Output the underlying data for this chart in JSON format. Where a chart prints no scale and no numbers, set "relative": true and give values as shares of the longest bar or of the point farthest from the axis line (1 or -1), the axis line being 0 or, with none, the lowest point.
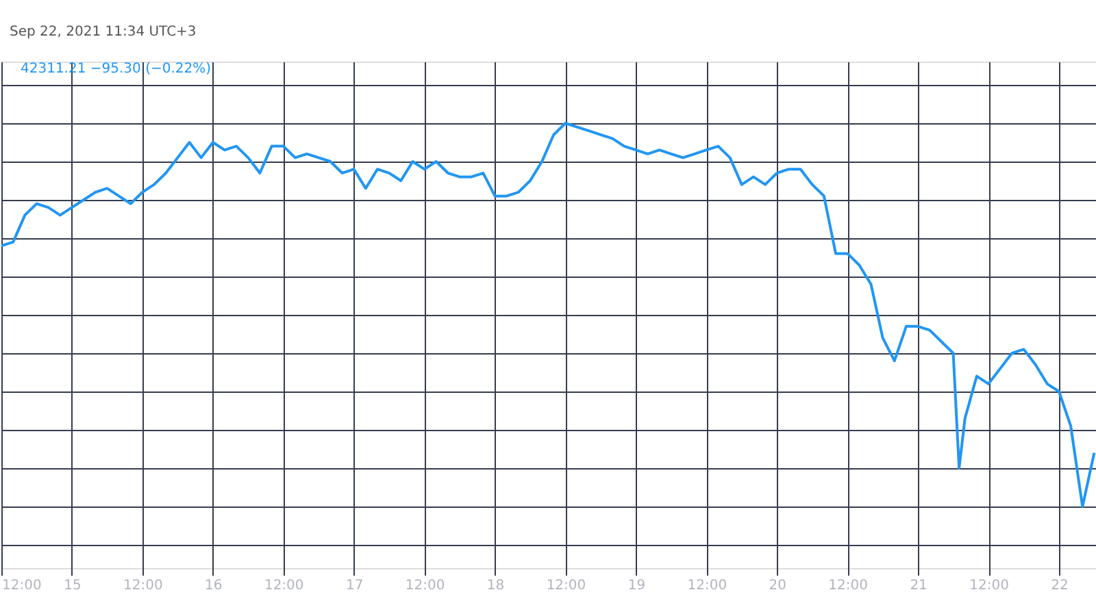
{
  "chart_data": {
    "type": "line",
    "relative": true,
    "grid": true,
    "marker": "none",
    "line_style": "solid",
    "annotations": [
      "Sep 22, 2021 11:34 UTC+3",
      "42311.21  −95.30 (−0.22%)"
    ],
    "xlim": [
      "2021-09-14T12:00",
      "2021-09-22T06:18"
    ],
    "xticks": [
      {
        "value": "2021-09-14T12:00",
        "label": "12:00"
      },
      {
        "value": "2021-09-15T00:00",
        "label": "15"
      },
      {
        "value": "2021-09-15T12:00",
        "label": "12:00"
      },
      {
        "value": "2021-09-16T00:00",
        "label": "16"
      },
      {
        "value": "2021-09-16T12:00",
        "label": "12:00"
      },
      {
        "value": "2021-09-17T00:00",
        "label": "17"
      },
      {
        "value": "2021-09-17T12:00",
        "label": "12:00"
      },
      {
        "value": "2021-09-18T00:00",
        "label": "18"
      },
      {
        "value": "2021-09-18T12:00",
        "label": "12:00"
      },
      {
        "value": "2021-09-19T00:00",
        "label": "19"
      },
      {
        "value": "2021-09-19T12:00",
        "label": "12:00"
      },
      {
        "value": "2021-09-20T00:00",
        "label": "20"
      },
      {
        "value": "2021-09-20T12:00",
        "label": "12:00"
      },
      {
        "value": "2021-09-21T00:00",
        "label": "21"
      },
      {
        "value": "2021-09-21T12:00",
        "label": "12:00"
      },
      {
        "value": "2021-09-22T00:00",
        "label": "22"
      }
    ],
    "series": [
      {
        "color": "#2196f3",
        "x": [
          "2021-09-14T12:00",
          "2021-09-14T14:00",
          "2021-09-14T16:00",
          "2021-09-14T18:00",
          "2021-09-14T20:00",
          "2021-09-14T22:00",
          "2021-09-15T00:00",
          "2021-09-15T02:00",
          "2021-09-15T04:00",
          "2021-09-15T06:00",
          "2021-09-15T08:00",
          "2021-09-15T10:00",
          "2021-09-15T12:00",
          "2021-09-15T14:00",
          "2021-09-15T16:00",
          "2021-09-15T18:00",
          "2021-09-15T20:00",
          "2021-09-15T22:00",
          "2021-09-16T00:00",
          "2021-09-16T02:00",
          "2021-09-16T04:00",
          "2021-09-16T06:00",
          "2021-09-16T08:00",
          "2021-09-16T10:00",
          "2021-09-16T12:00",
          "2021-09-16T14:00",
          "2021-09-16T16:00",
          "2021-09-16T18:00",
          "2021-09-16T20:00",
          "2021-09-16T22:00",
          "2021-09-17T00:00",
          "2021-09-17T02:00",
          "2021-09-17T04:00",
          "2021-09-17T06:00",
          "2021-09-17T08:00",
          "2021-09-17T10:00",
          "2021-09-17T12:00",
          "2021-09-17T14:00",
          "2021-09-17T16:00",
          "2021-09-17T18:00",
          "2021-09-17T20:00",
          "2021-09-17T22:00",
          "2021-09-18T00:00",
          "2021-09-18T02:00",
          "2021-09-18T04:00",
          "2021-09-18T06:00",
          "2021-09-18T08:00",
          "2021-09-18T10:00",
          "2021-09-18T12:00",
          "2021-09-18T14:00",
          "2021-09-18T16:00",
          "2021-09-18T18:00",
          "2021-09-18T20:00",
          "2021-09-18T22:00",
          "2021-09-19T00:00",
          "2021-09-19T02:00",
          "2021-09-19T04:00",
          "2021-09-19T06:00",
          "2021-09-19T08:00",
          "2021-09-19T10:00",
          "2021-09-19T12:00",
          "2021-09-19T14:00",
          "2021-09-19T16:00",
          "2021-09-19T18:00",
          "2021-09-19T20:00",
          "2021-09-19T22:00",
          "2021-09-20T00:00",
          "2021-09-20T02:00",
          "2021-09-20T04:00",
          "2021-09-20T06:00",
          "2021-09-20T08:00",
          "2021-09-20T10:00",
          "2021-09-20T12:00",
          "2021-09-20T14:00",
          "2021-09-20T16:00",
          "2021-09-20T18:00",
          "2021-09-20T20:00",
          "2021-09-20T22:00",
          "2021-09-21T00:00",
          "2021-09-21T02:00",
          "2021-09-21T04:00",
          "2021-09-21T06:00",
          "2021-09-21T07:00",
          "2021-09-21T08:00",
          "2021-09-21T10:00",
          "2021-09-21T12:00",
          "2021-09-21T14:00",
          "2021-09-21T16:00",
          "2021-09-21T18:00",
          "2021-09-21T20:00",
          "2021-09-21T22:00",
          "2021-09-22T00:00",
          "2021-09-22T02:00",
          "2021-09-22T04:00",
          "2021-09-22T06:00"
        ],
        "values": [
          0.68,
          0.69,
          0.76,
          0.79,
          0.78,
          0.76,
          0.78,
          0.8,
          0.82,
          0.83,
          0.81,
          0.79,
          0.82,
          0.84,
          0.87,
          0.91,
          0.95,
          0.91,
          0.95,
          0.93,
          0.94,
          0.91,
          0.87,
          0.94,
          0.94,
          0.91,
          0.92,
          0.91,
          0.9,
          0.87,
          0.88,
          0.83,
          0.88,
          0.87,
          0.85,
          0.9,
          0.88,
          0.9,
          0.87,
          0.86,
          0.86,
          0.87,
          0.81,
          0.81,
          0.82,
          0.85,
          0.9,
          0.97,
          1.0,
          0.99,
          0.98,
          0.97,
          0.96,
          0.94,
          0.93,
          0.92,
          0.93,
          0.92,
          0.91,
          0.92,
          0.93,
          0.94,
          0.91,
          0.84,
          0.86,
          0.84,
          0.87,
          0.88,
          0.88,
          0.84,
          0.81,
          0.66,
          0.66,
          0.63,
          0.58,
          0.44,
          0.38,
          0.47,
          0.47,
          0.46,
          0.43,
          0.4,
          0.1,
          0.23,
          0.34,
          0.32,
          0.36,
          0.4,
          0.41,
          0.37,
          0.32,
          0.3,
          0.21,
          0.0,
          0.14
        ]
      }
    ]
  }
}
